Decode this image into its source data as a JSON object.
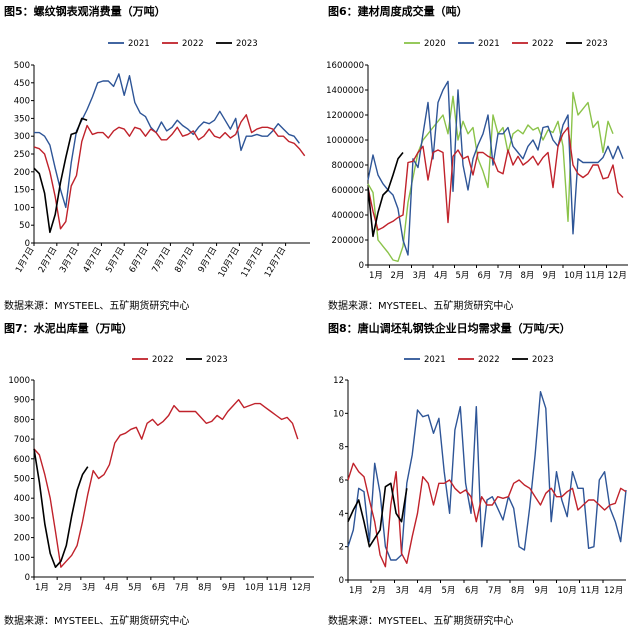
{
  "panels": [
    {
      "title": "图5：螺纹钢表观消费量（万吨）",
      "source": "数据来源：MYSTEEL、五矿期货研究中心"
    },
    {
      "title": "图6：建材周度成交量（吨）",
      "source": "数据来源：MYSTEEL、五矿期货研究中心"
    },
    {
      "title": "图7：水泥出库量（万吨）",
      "source": "数据来源：MYSTEEL、五矿期货研究中心"
    },
    {
      "title": "图8：唐山调坯轧钢铁企业日均需求量（万吨/天）",
      "source": "数据来源：MYSTEEL、五矿期货研究中心"
    }
  ],
  "chart_data": [
    {
      "type": "line",
      "title": "图5：螺纹钢表观消费量（万吨）",
      "ylim": [
        0,
        500
      ],
      "yticks": [
        0,
        50,
        100,
        150,
        200,
        250,
        300,
        350,
        400,
        450,
        500
      ],
      "xlim": [
        1,
        53
      ],
      "xticks": [
        {
          "pos": 1,
          "label": "1月7日"
        },
        {
          "pos": 5.3,
          "label": "2月7日"
        },
        {
          "pos": 9.3,
          "label": "3月7日"
        },
        {
          "pos": 13.7,
          "label": "4月7日"
        },
        {
          "pos": 18,
          "label": "5月7日"
        },
        {
          "pos": 22.4,
          "label": "6月7日"
        },
        {
          "pos": 26.7,
          "label": "7月7日"
        },
        {
          "pos": 31,
          "label": "8月7日"
        },
        {
          "pos": 35.4,
          "label": "9月7日"
        },
        {
          "pos": 39.7,
          "label": "10月7日"
        },
        {
          "pos": 44,
          "label": "11月7日"
        },
        {
          "pos": 48.4,
          "label": "12月7日"
        }
      ],
      "xlabel_rotate": -60,
      "legend": [
        "2021",
        "2022",
        "2023"
      ],
      "series": [
        {
          "name": "2021",
          "color": "#2E5597",
          "values": [
            310,
            310,
            300,
            275,
            210,
            150,
            100,
            225,
            315,
            345,
            375,
            410,
            450,
            455,
            455,
            440,
            475,
            415,
            470,
            395,
            365,
            355,
            325,
            310,
            340,
            315,
            325,
            345,
            330,
            320,
            305,
            325,
            340,
            335,
            345,
            370,
            345,
            320,
            350,
            260,
            300,
            300,
            305,
            300,
            300,
            315,
            335,
            320,
            305,
            300,
            280
          ]
        },
        {
          "name": "2022",
          "color": "#C0222B",
          "values": [
            270,
            265,
            250,
            200,
            130,
            40,
            60,
            160,
            190,
            285,
            330,
            305,
            310,
            310,
            295,
            315,
            325,
            320,
            300,
            325,
            320,
            300,
            320,
            310,
            290,
            290,
            305,
            325,
            300,
            305,
            315,
            290,
            300,
            320,
            300,
            295,
            310,
            295,
            305,
            340,
            360,
            310,
            320,
            325,
            325,
            320,
            300,
            300,
            285,
            280,
            265,
            245
          ]
        },
        {
          "name": "2023",
          "color": "#000000",
          "values": [
            210,
            195,
            140,
            30,
            80,
            170,
            240,
            305,
            310,
            350,
            345
          ]
        }
      ]
    },
    {
      "type": "line",
      "title": "图6：建材周度成交量（吨）",
      "ylim": [
        0,
        1600000
      ],
      "yticks": [
        0,
        200000,
        400000,
        600000,
        800000,
        1000000,
        1200000,
        1400000,
        1600000
      ],
      "xlim": [
        1,
        53
      ],
      "xticks": [
        {
          "pos": 1,
          "label": "1月"
        },
        {
          "pos": 5.3,
          "label": "2月"
        },
        {
          "pos": 9.7,
          "label": "3月"
        },
        {
          "pos": 14,
          "label": "4月"
        },
        {
          "pos": 18.3,
          "label": "5月"
        },
        {
          "pos": 22.7,
          "label": "6月"
        },
        {
          "pos": 27,
          "label": "7月"
        },
        {
          "pos": 31.3,
          "label": "8月"
        },
        {
          "pos": 35.7,
          "label": "9月"
        },
        {
          "pos": 40,
          "label": "10月"
        },
        {
          "pos": 44.3,
          "label": "11月"
        },
        {
          "pos": 48.7,
          "label": "12月"
        }
      ],
      "legend": [
        "2020",
        "2021",
        "2022",
        "2023"
      ],
      "series": [
        {
          "name": "2020",
          "color": "#8BC34A",
          "values": [
            650,
            580,
            200,
            150,
            100,
            40,
            30,
            150,
            500,
            700,
            900,
            1000,
            1050,
            1100,
            1150,
            1200,
            1050,
            1350,
            1000,
            1150,
            1050,
            1100,
            850,
            750,
            620,
            1200,
            1050,
            1100,
            900,
            1050,
            1080,
            1050,
            1120,
            1080,
            1100,
            1000,
            1080,
            1060,
            1150,
            950,
            350,
            1380,
            1200,
            1250,
            1300,
            1100,
            1150,
            900,
            1150,
            1050
          ]
        },
        {
          "name": "2021",
          "color": "#2E5597",
          "values": [
            680,
            880,
            720,
            650,
            600,
            560,
            450,
            200,
            80,
            850,
            780,
            1050,
            1300,
            850,
            1300,
            1400,
            1470,
            590,
            1400,
            800,
            600,
            850,
            960,
            1050,
            1200,
            800,
            1050,
            1050,
            1100,
            950,
            900,
            850,
            950,
            1000,
            920,
            1100,
            1110,
            1000,
            950,
            1120,
            1200,
            250,
            850,
            820,
            820,
            820,
            820,
            860,
            950,
            850,
            950,
            850
          ]
        },
        {
          "name": "2022",
          "color": "#C0222B",
          "values": [
            620,
            430,
            280,
            300,
            330,
            350,
            380,
            400,
            820,
            830,
            900,
            950,
            680,
            900,
            920,
            900,
            340,
            870,
            920,
            850,
            870,
            720,
            900,
            900,
            870,
            850,
            750,
            730,
            920,
            800,
            870,
            800,
            830,
            870,
            800,
            860,
            900,
            620,
            950,
            1050,
            1100,
            800,
            730,
            700,
            730,
            800,
            800,
            690,
            700,
            800,
            580,
            540
          ]
        },
        {
          "name": "2023",
          "color": "#000000",
          "values": [
            620,
            230,
            420,
            560,
            600,
            720,
            850,
            900
          ]
        }
      ],
      "value_scale": 1000
    },
    {
      "type": "line",
      "title": "图7：水泥出库量（万吨）",
      "ylim": [
        0,
        1000
      ],
      "yticks": [
        0,
        100,
        200,
        300,
        400,
        500,
        600,
        700,
        800,
        900,
        1000
      ],
      "xlim": [
        1,
        53
      ],
      "xticks": [
        {
          "pos": 1,
          "label": "1月"
        },
        {
          "pos": 5.3,
          "label": "2月"
        },
        {
          "pos": 9.7,
          "label": "3月"
        },
        {
          "pos": 14,
          "label": "4月"
        },
        {
          "pos": 18.3,
          "label": "5月"
        },
        {
          "pos": 22.7,
          "label": "6月"
        },
        {
          "pos": 27,
          "label": "7月"
        },
        {
          "pos": 31.3,
          "label": "8月"
        },
        {
          "pos": 35.7,
          "label": "9月"
        },
        {
          "pos": 40,
          "label": "10月"
        },
        {
          "pos": 44.3,
          "label": "11月"
        },
        {
          "pos": 48.7,
          "label": "12月"
        }
      ],
      "legend": [
        "2022",
        "2023"
      ],
      "series": [
        {
          "name": "2022",
          "color": "#C0222B",
          "values": [
            650,
            620,
            520,
            400,
            230,
            50,
            80,
            110,
            160,
            280,
            420,
            540,
            500,
            520,
            570,
            680,
            720,
            730,
            750,
            760,
            700,
            780,
            800,
            770,
            790,
            820,
            870,
            840,
            840,
            840,
            840,
            810,
            780,
            790,
            820,
            800,
            840,
            870,
            900,
            860,
            870,
            880,
            880,
            860,
            840,
            820,
            800,
            810,
            780,
            700
          ]
        },
        {
          "name": "2023",
          "color": "#000000",
          "values": [
            650,
            480,
            270,
            120,
            50,
            80,
            160,
            310,
            440,
            520,
            560
          ]
        }
      ]
    },
    {
      "type": "line",
      "title": "图8：唐山调坯轧钢铁企业日均需求量（万吨/天）",
      "ylim": [
        0,
        12
      ],
      "yticks": [
        0,
        2,
        4,
        6,
        8,
        10,
        12
      ],
      "xlim": [
        1,
        53
      ],
      "xticks": [
        {
          "pos": 1,
          "label": "1月"
        },
        {
          "pos": 5.3,
          "label": "2月"
        },
        {
          "pos": 9.7,
          "label": "3月"
        },
        {
          "pos": 14,
          "label": "4月"
        },
        {
          "pos": 18.3,
          "label": "5月"
        },
        {
          "pos": 22.7,
          "label": "6月"
        },
        {
          "pos": 27,
          "label": "7月"
        },
        {
          "pos": 31.3,
          "label": "8月"
        },
        {
          "pos": 35.7,
          "label": "9月"
        },
        {
          "pos": 40,
          "label": "10月"
        },
        {
          "pos": 44.3,
          "label": "11月"
        },
        {
          "pos": 48.7,
          "label": "12月"
        }
      ],
      "legend": [
        "2021",
        "2022",
        "2023"
      ],
      "series": [
        {
          "name": "2021",
          "color": "#2E5597",
          "values": [
            2.0,
            3.0,
            5.5,
            5.3,
            2.3,
            7.0,
            5.2,
            2.0,
            1.2,
            1.2,
            1.5,
            5.8,
            7.5,
            10.2,
            9.8,
            9.9,
            8.8,
            9.7,
            6.5,
            4.0,
            9.0,
            10.4,
            5.8,
            4.0,
            10.4,
            2.0,
            4.8,
            5.0,
            4.3,
            3.6,
            5.0,
            4.3,
            2.0,
            1.8,
            4.4,
            7.5,
            11.3,
            10.3,
            3.5,
            6.5,
            4.8,
            3.8,
            6.5,
            5.5,
            5.5,
            1.9,
            2.0,
            6.0,
            6.5,
            4.3,
            3.5,
            2.3,
            5.4
          ]
        },
        {
          "name": "2022",
          "color": "#C0222B",
          "values": [
            6.0,
            7.0,
            6.5,
            6.2,
            4.8,
            3.5,
            1.5,
            0.8,
            4.5,
            6.5,
            1.6,
            1.0,
            2.6,
            4.0,
            6.2,
            5.8,
            4.5,
            5.8,
            5.8,
            6.0,
            5.5,
            5.2,
            5.4,
            5.0,
            3.5,
            5.0,
            4.5,
            4.5,
            5.0,
            4.9,
            5.0,
            5.8,
            6.0,
            5.7,
            5.5,
            5.0,
            4.5,
            5.2,
            5.5,
            5.0,
            5.0,
            5.3,
            5.5,
            4.2,
            4.5,
            4.8,
            4.8,
            4.5,
            4.2,
            4.5,
            4.6,
            5.5,
            5.3
          ]
        },
        {
          "name": "2023",
          "color": "#000000",
          "values": [
            3.5,
            4.2,
            4.8,
            3.5,
            2.0,
            2.5,
            3.0,
            5.6,
            5.8,
            4.0,
            3.5,
            5.5
          ]
        }
      ]
    }
  ]
}
